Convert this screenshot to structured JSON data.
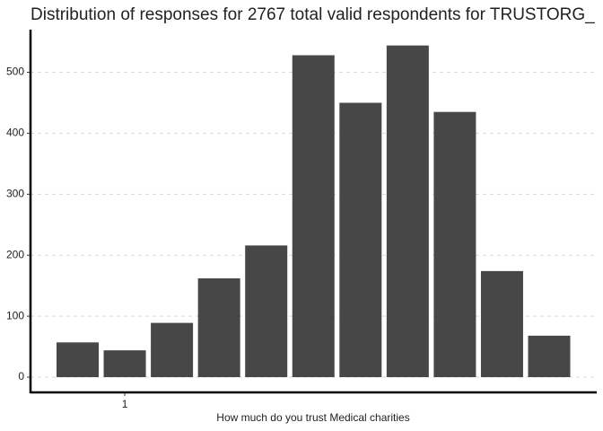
{
  "chart_data": {
    "type": "bar",
    "title": "Distribution of responses for 2767 total valid respondents for TRUSTORG_",
    "x_label": "How much do you trust Medical charities",
    "categories": [
      null,
      "1",
      null,
      null,
      null,
      null,
      null,
      null,
      null,
      null,
      null
    ],
    "values": [
      57,
      44,
      89,
      162,
      216,
      528,
      450,
      544,
      435,
      174,
      68
    ],
    "color": "#474747",
    "ylim": [
      -25,
      570
    ],
    "yticks": [
      0,
      100,
      200,
      300,
      400,
      500
    ],
    "grid": true
  }
}
